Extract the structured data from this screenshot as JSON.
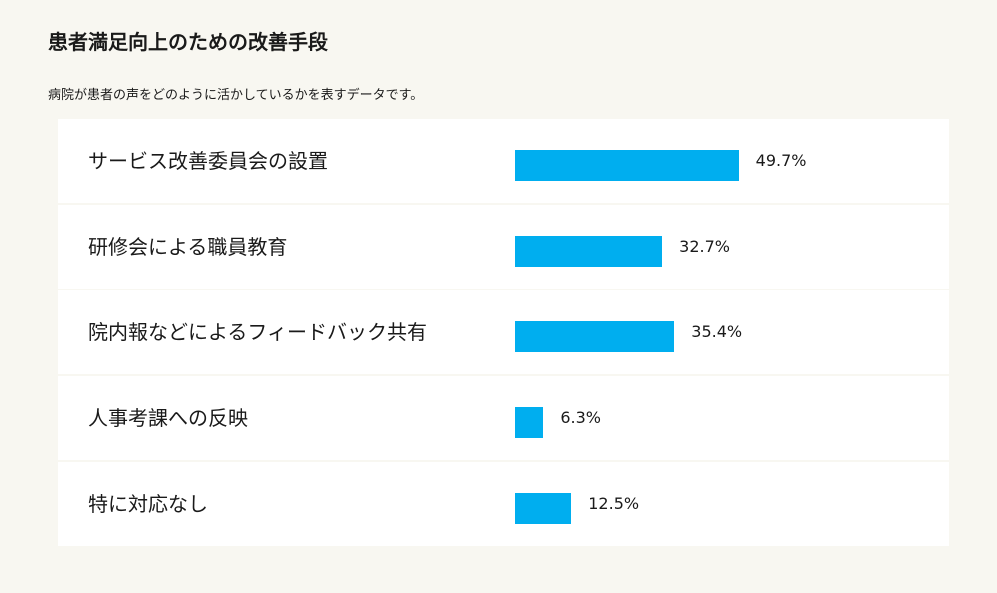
{
  "chart_data": {
    "type": "bar",
    "orientation": "horizontal",
    "title": "患者満足向上のための改善手段",
    "subtitle": "病院が患者の声をどのように活かしているかを表すデータです。",
    "categories": [
      "サービス改善委員会の設置",
      "研修会による職員教育",
      "院内報などによるフィードバック共有",
      "人事考課への反映",
      "特に対応なし"
    ],
    "values": [
      49.7,
      32.7,
      35.4,
      6.3,
      12.5
    ],
    "value_labels": [
      "49.7%",
      "32.7%",
      "35.4%",
      "6.3%",
      "12.5%"
    ],
    "unit": "%",
    "xlim": [
      0,
      100
    ],
    "bar_color": "#00aeef",
    "grid": false
  }
}
